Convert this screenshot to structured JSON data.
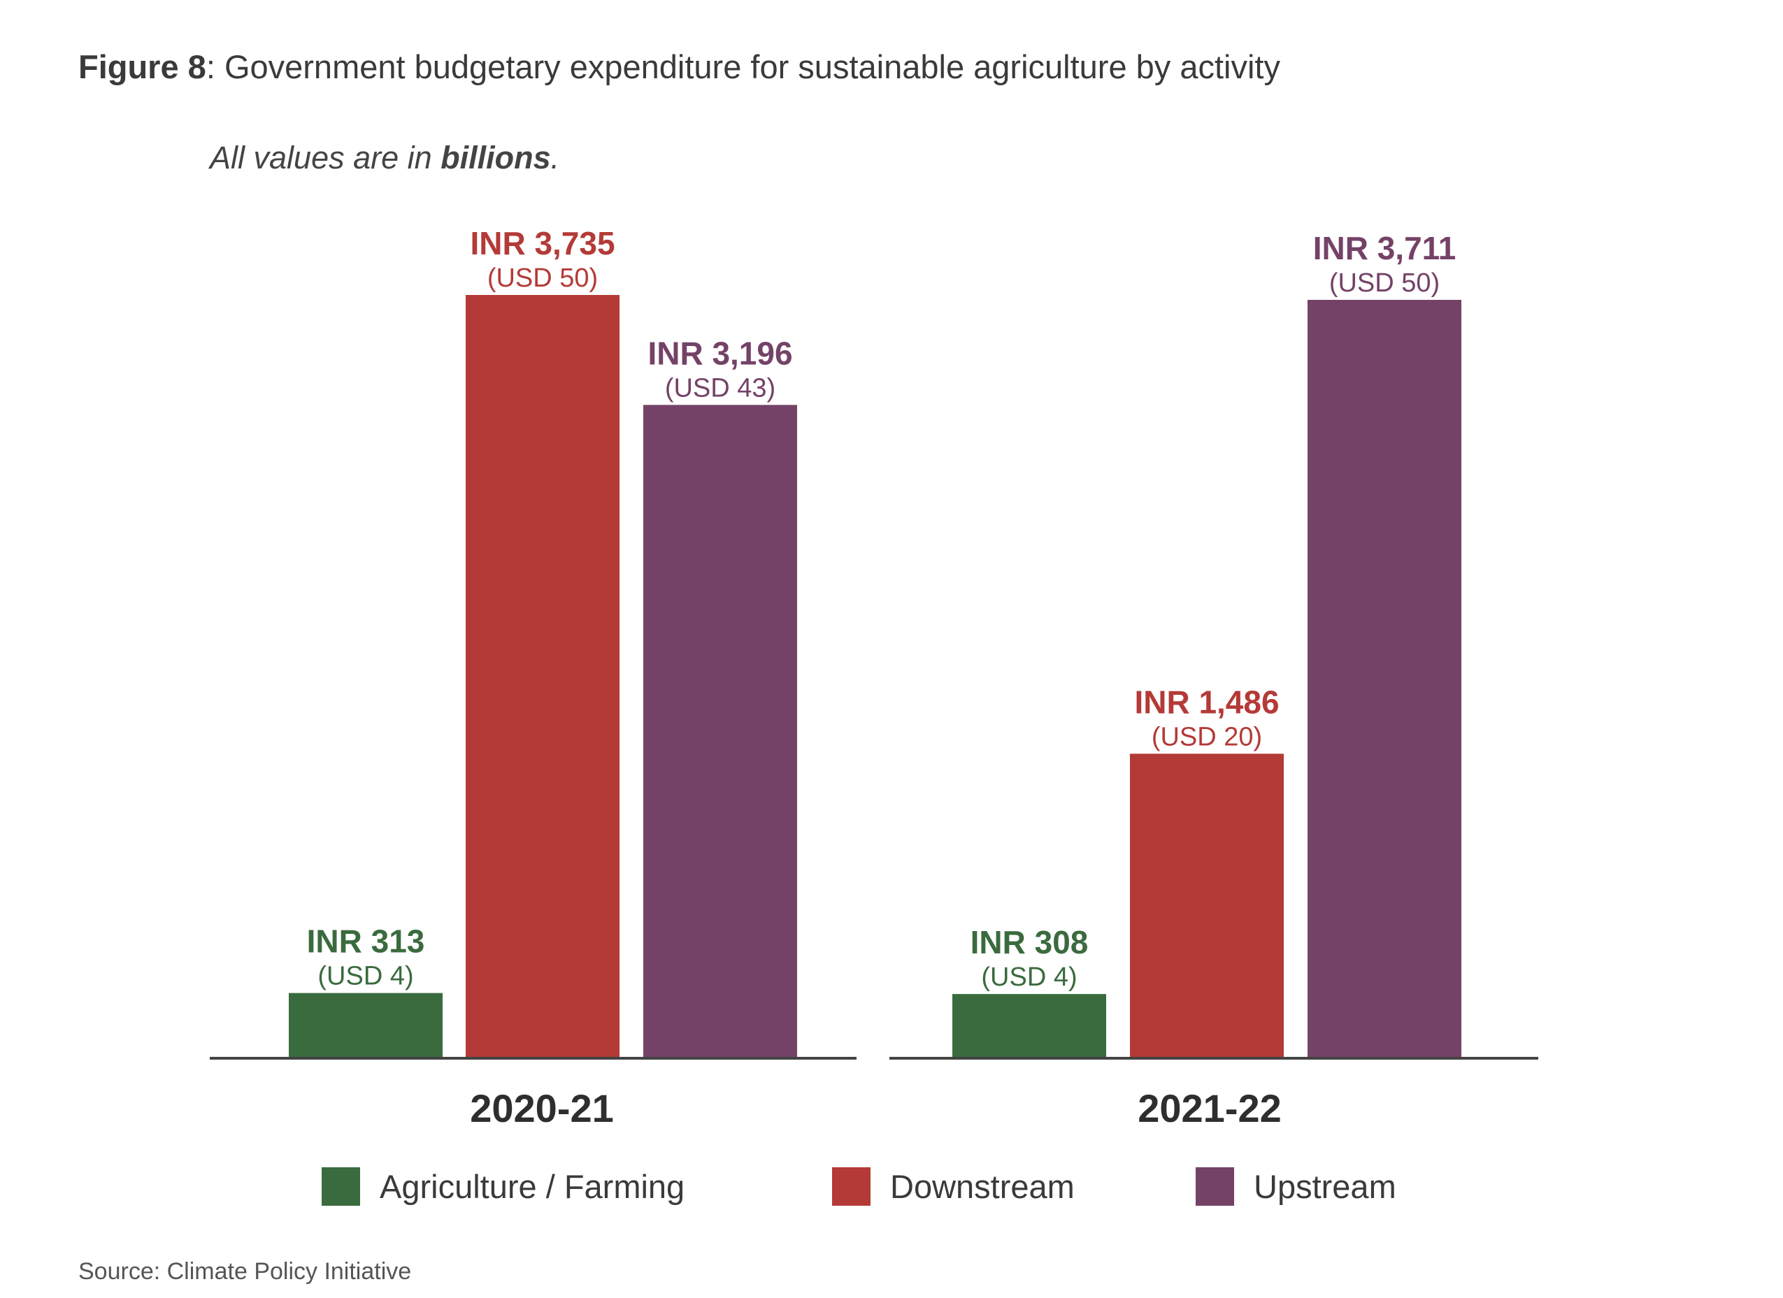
{
  "figure": {
    "label": "Figure 8",
    "title_rest": ": Government budgetary expenditure for sustainable agriculture by activity",
    "subtitle_pre": "All values are in ",
    "subtitle_bold": "billions",
    "subtitle_post": ".",
    "source": "Source: Climate Policy Initiative"
  },
  "chart_data": {
    "type": "bar",
    "categories": [
      "2020-21",
      "2021-22"
    ],
    "unit": "INR billions",
    "series": [
      {
        "name": "Agriculture / Farming",
        "color": "#3a6b3e",
        "values": [
          313,
          308
        ],
        "labels": [
          "INR 313",
          "INR 308"
        ],
        "sublabels": [
          "(USD 4)",
          "(USD 4)"
        ]
      },
      {
        "name": "Downstream",
        "color": "#b43a37",
        "values": [
          3735,
          1486
        ],
        "labels": [
          "INR 3,735",
          "INR 1,486"
        ],
        "sublabels": [
          "(USD 50)",
          "(USD 20)"
        ]
      },
      {
        "name": "Upstream",
        "color": "#744267",
        "values": [
          3196,
          3711
        ],
        "labels": [
          "INR 3,196",
          "INR 3,711"
        ],
        "sublabels": [
          "(USD 43)",
          "(USD 50)"
        ]
      }
    ],
    "ylim": [
      0,
      3735
    ],
    "grid": false,
    "legend_position": "bottom"
  }
}
